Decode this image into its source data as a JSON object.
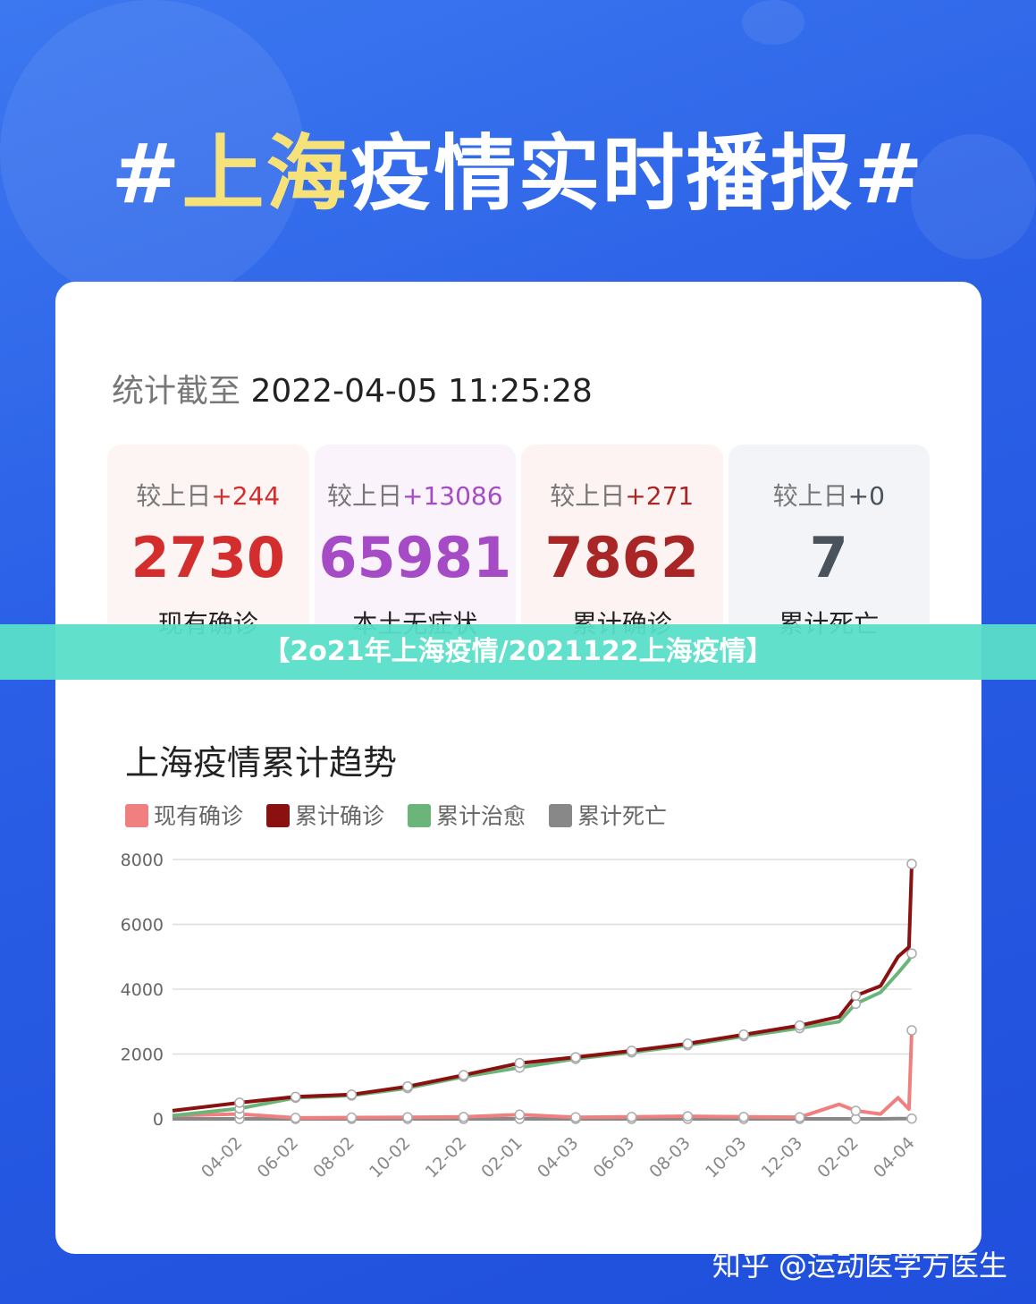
{
  "header": {
    "title_prefix": "#",
    "title_highlight": "上海",
    "title_rest": "疫情实时播报#"
  },
  "timestamp": {
    "label": "统计截至",
    "value": "2022-04-05 11:25:28"
  },
  "stats": [
    {
      "delta_label": "较上日",
      "delta": "+244",
      "value": "2730",
      "label": "现有确诊",
      "color": "#d42d2d",
      "bg": "#fdf4f4"
    },
    {
      "delta_label": "较上日",
      "delta": "+13086",
      "value": "65981",
      "label": "本土无症状",
      "color": "#a54bc6",
      "bg": "#fbf3fb"
    },
    {
      "delta_label": "较上日",
      "delta": "+271",
      "value": "7862",
      "label": "累计确诊",
      "color": "#a82626",
      "bg": "#fdf3f2"
    },
    {
      "delta_label": "较上日",
      "delta": "+0",
      "value": "7",
      "label": "累计死亡",
      "color": "#4a525c",
      "bg": "#f2f4f7"
    }
  ],
  "banner": "【2o21年上海疫情/2021122上海疫情】",
  "watermark": "知乎 @运动医学方医生",
  "chart_data": {
    "type": "line",
    "title": "上海疫情累计趋势",
    "xlabel": "",
    "ylabel": "",
    "ylim": [
      0,
      8000
    ],
    "yticks": [
      "0",
      "2000",
      "4000",
      "6000",
      "8000"
    ],
    "xticks": [
      "04-02",
      "06-02",
      "08-02",
      "10-02",
      "12-02",
      "02-01",
      "04-03",
      "06-03",
      "08-03",
      "10-03",
      "12-03",
      "02-02",
      "04-04"
    ],
    "xtick_dates": [
      "2020-04-02",
      "2020-06-02",
      "2020-08-02",
      "2020-10-02",
      "2020-12-02",
      "2021-02-01",
      "2021-04-03",
      "2021-06-03",
      "2021-08-03",
      "2021-10-03",
      "2021-12-03",
      "2022-02-02",
      "2022-04-04"
    ],
    "x": [
      "2020-01-20",
      "2020-04-02",
      "2020-06-02",
      "2020-08-02",
      "2020-10-02",
      "2020-12-02",
      "2021-02-01",
      "2021-04-03",
      "2021-06-03",
      "2021-08-03",
      "2021-10-03",
      "2021-12-03",
      "2022-01-15",
      "2022-02-02",
      "2022-03-01",
      "2022-03-20",
      "2022-04-01",
      "2022-04-04"
    ],
    "legend_position": "top-left",
    "grid": true,
    "series": [
      {
        "name": "现有确诊",
        "color": "#f08080",
        "values": [
          100,
          150,
          30,
          40,
          50,
          60,
          130,
          50,
          60,
          80,
          60,
          50,
          450,
          250,
          150,
          650,
          300,
          2730
        ]
      },
      {
        "name": "累计确诊",
        "color": "#8b1010",
        "values": [
          250,
          500,
          680,
          750,
          1000,
          1350,
          1720,
          1900,
          2100,
          2320,
          2600,
          2880,
          3150,
          3800,
          4100,
          5000,
          5300,
          7862
        ]
      },
      {
        "name": "累计治愈",
        "color": "#6bb57a",
        "values": [
          100,
          320,
          650,
          720,
          950,
          1300,
          1580,
          1850,
          2050,
          2270,
          2550,
          2800,
          3000,
          3550,
          3900,
          4500,
          4900,
          5100
        ]
      },
      {
        "name": "累计死亡",
        "color": "#888888",
        "values": [
          0,
          0,
          0,
          0,
          0,
          0,
          0,
          0,
          0,
          0,
          0,
          0,
          0,
          0,
          0,
          7,
          7,
          7
        ]
      }
    ]
  }
}
